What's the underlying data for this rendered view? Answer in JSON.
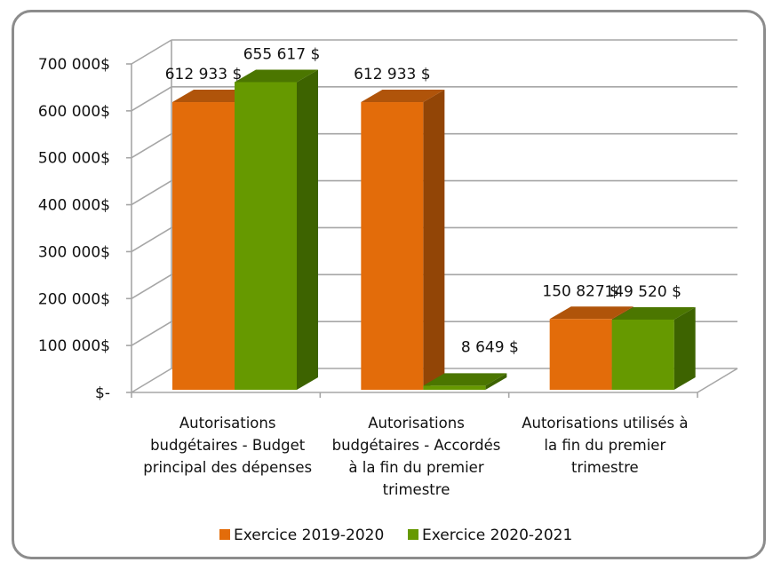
{
  "chart_data": {
    "type": "bar",
    "variant": "3d-clustered-column",
    "title": "",
    "xlabel": "",
    "ylabel": "",
    "ylim": [
      0,
      700000
    ],
    "yticks": [
      0,
      100000,
      200000,
      300000,
      400000,
      500000,
      600000,
      700000
    ],
    "ytick_labels": [
      "$-",
      "100 000$",
      "200 000$",
      "300 000$",
      "400 000$",
      "500 000$",
      "600 000$",
      "700 000$"
    ],
    "grid": true,
    "categories": [
      [
        "Autorisations",
        "budgétaires - Budget",
        "principal des dépenses"
      ],
      [
        "Autorisations",
        "budgétaires - Accordés",
        "à la fin du premier",
        "trimestre"
      ],
      [
        "Autorisations utilisés à",
        "la fin du premier",
        "trimestre"
      ]
    ],
    "series": [
      {
        "name": "Exercice 2019-2020",
        "color": "#e36c0a",
        "top_color": "#b0540a",
        "side_color": "#924506",
        "values": [
          612933,
          612933,
          150827
        ],
        "labels": [
          "612 933 $",
          "612 933 $",
          "150 827 $"
        ]
      },
      {
        "name": "Exercice 2020-2021",
        "color": "#669900",
        "top_color": "#4b7600",
        "side_color": "#3d6300",
        "values": [
          655617,
          8649,
          149520
        ],
        "labels": [
          "655 617 $",
          "8 649 $",
          "149 520 $"
        ]
      }
    ],
    "legend_position": "bottom"
  }
}
